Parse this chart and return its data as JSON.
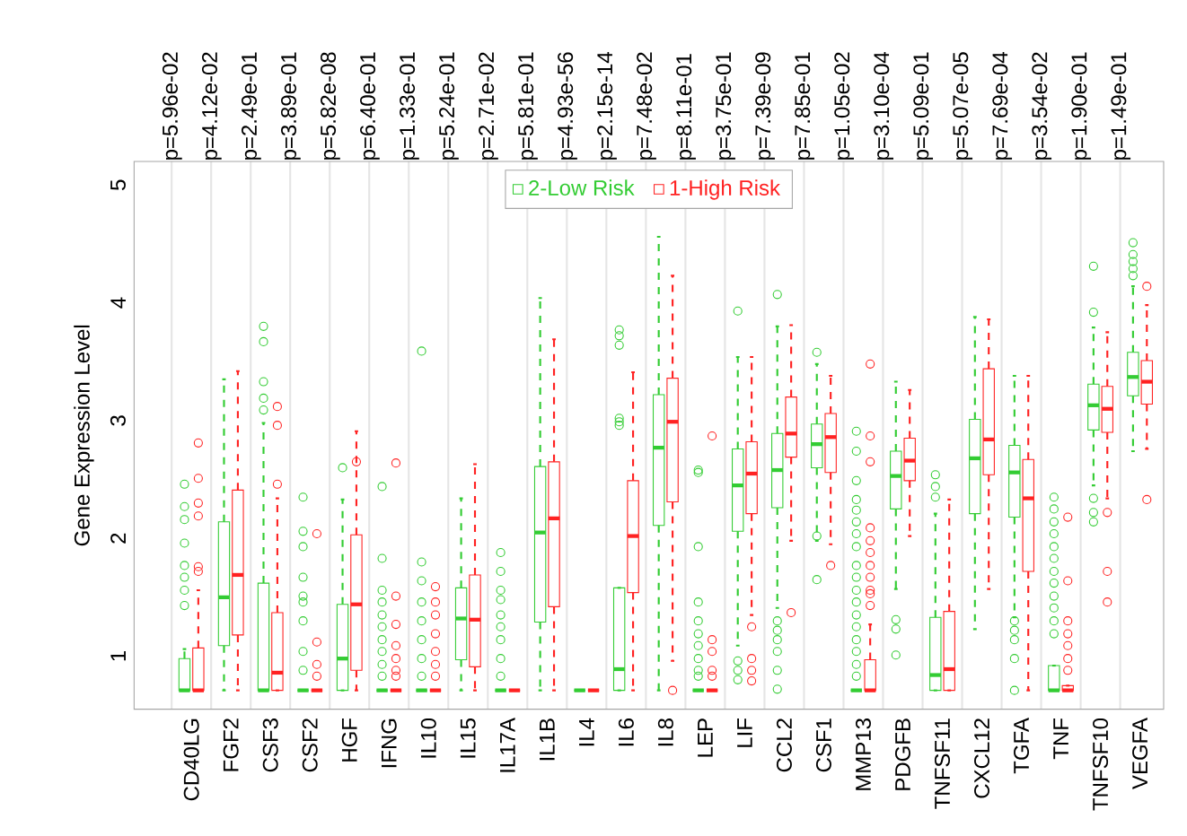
{
  "chart_data": {
    "type": "box",
    "ylabel": "Gene Expression Level",
    "categories": [
      "CD40LG",
      "FGF2",
      "CSF3",
      "CSF2",
      "HGF",
      "IFNG",
      "IL10",
      "IL15",
      "IL17A",
      "IL1B",
      "IL4",
      "IL6",
      "IL8",
      "LEP",
      "LIF",
      "CCL2",
      "CSF1",
      "MMP13",
      "PDGFB",
      "TNFSF11",
      "CXCL12",
      "TGFA",
      "TNF",
      "TNFSF10",
      "VEGFA"
    ],
    "ylim": [
      0.55,
      5.2
    ],
    "yticks": [
      1,
      2,
      3,
      4,
      5
    ],
    "grid": "x",
    "legend": "top",
    "marker": "circle",
    "annotations": [
      "p=5.96e-02",
      "p=4.12e-02",
      "p=2.49e-01",
      "p=3.89e-01",
      "p=5.82e-08",
      "p=6.40e-01",
      "p=1.33e-01",
      "p=5.24e-01",
      "p=2.71e-02",
      "p=5.81e-01",
      "p=4.93e-56",
      "p=2.15e-14",
      "p=7.48e-02",
      "p=8.11e-01",
      "p=3.75e-01",
      "p=7.39e-09",
      "p=7.85e-01",
      "p=1.05e-02",
      "p=3.10e-04",
      "p=5.09e-01",
      "p=5.07e-05",
      "p=7.69e-04",
      "p=3.54e-02",
      "p=1.90e-01",
      "p=1.49e-01"
    ],
    "series": [
      {
        "name": "2-Low Risk",
        "color": "#33cc33",
        "boxes": [
          {
            "low": 0.71,
            "q1": 0.71,
            "median": 0.71,
            "q3": 0.98,
            "high": 1.06,
            "outliers": [
              1.43,
              1.56,
              1.67,
              1.77,
              1.96,
              2.16,
              2.27,
              2.46
            ]
          },
          {
            "low": 0.71,
            "q1": 1.09,
            "median": 1.5,
            "q3": 2.14,
            "high": 3.35
          },
          {
            "low": 0.71,
            "q1": 0.71,
            "median": 0.71,
            "q3": 1.62,
            "high": 2.98,
            "outliers": [
              3.09,
              3.19,
              3.33,
              3.67,
              3.8
            ]
          },
          {
            "low": 0.71,
            "q1": 0.71,
            "median": 0.71,
            "q3": 0.71,
            "high": 0.71,
            "outliers": [
              0.88,
              1.04,
              1.3,
              1.46,
              1.51,
              1.67,
              1.93,
              2.06,
              2.35
            ]
          },
          {
            "low": 0.71,
            "q1": 0.71,
            "median": 0.98,
            "q3": 1.44,
            "high": 2.33,
            "outliers": [
              2.6
            ]
          },
          {
            "low": 0.71,
            "q1": 0.71,
            "median": 0.71,
            "q3": 0.71,
            "high": 0.71,
            "outliers": [
              0.83,
              0.93,
              1.04,
              1.14,
              1.25,
              1.35,
              1.46,
              1.56,
              1.83,
              2.44
            ]
          },
          {
            "low": 0.71,
            "q1": 0.71,
            "median": 0.71,
            "q3": 0.71,
            "high": 0.71,
            "outliers": [
              0.83,
              0.98,
              1.14,
              1.3,
              1.46,
              1.64,
              1.8,
              3.59
            ]
          },
          {
            "low": 0.71,
            "q1": 0.97,
            "median": 1.32,
            "q3": 1.58,
            "high": 2.34
          },
          {
            "low": 0.71,
            "q1": 0.71,
            "median": 0.71,
            "q3": 0.71,
            "high": 0.71,
            "outliers": [
              0.83,
              0.98,
              1.14,
              1.25,
              1.35,
              1.48,
              1.56,
              1.72,
              1.88
            ]
          },
          {
            "low": 0.71,
            "q1": 1.29,
            "median": 2.05,
            "q3": 2.61,
            "high": 4.04
          },
          {
            "low": 0.71,
            "q1": 0.71,
            "median": 0.71,
            "q3": 0.71,
            "high": 0.71
          },
          {
            "low": 0.71,
            "q1": 0.71,
            "median": 0.89,
            "q3": 1.58,
            "high": 1.58,
            "outliers": [
              2.96,
              2.99,
              3.02,
              3.64,
              3.72,
              3.77
            ]
          },
          {
            "low": 0.71,
            "q1": 2.11,
            "median": 2.77,
            "q3": 3.22,
            "high": 4.56
          },
          {
            "low": 0.71,
            "q1": 0.71,
            "median": 0.71,
            "q3": 0.71,
            "high": 0.71,
            "outliers": [
              0.83,
              0.88,
              0.98,
              1.09,
              1.19,
              1.3,
              1.46,
              1.93,
              2.56,
              2.58
            ]
          },
          {
            "low": 1.09,
            "q1": 2.06,
            "median": 2.45,
            "q3": 2.76,
            "high": 3.54,
            "outliers": [
              0.8,
              0.88,
              0.96,
              3.93
            ]
          },
          {
            "low": 1.41,
            "q1": 2.26,
            "median": 2.58,
            "q3": 2.89,
            "high": 3.8,
            "outliers": [
              0.72,
              0.88,
              1.04,
              1.14,
              1.22,
              1.3,
              4.07
            ]
          },
          {
            "low": 1.98,
            "q1": 2.6,
            "median": 2.8,
            "q3": 2.97,
            "high": 3.48,
            "outliers": [
              1.65,
              2.02,
              3.58
            ]
          },
          {
            "low": 0.71,
            "q1": 0.71,
            "median": 0.71,
            "q3": 0.71,
            "high": 0.71,
            "outliers": [
              0.83,
              0.93,
              1.04,
              1.14,
              1.25,
              1.35,
              1.46,
              1.56,
              1.67,
              1.77,
              1.93,
              2.04,
              2.14,
              2.24,
              2.33,
              2.49,
              2.74,
              2.91
            ]
          },
          {
            "low": 1.57,
            "q1": 2.25,
            "median": 2.53,
            "q3": 2.74,
            "high": 3.33,
            "outliers": [
              1.01,
              1.23,
              1.31
            ]
          },
          {
            "low": 0.71,
            "q1": 0.71,
            "median": 0.84,
            "q3": 1.33,
            "high": 2.21,
            "outliers": [
              2.35,
              2.44,
              2.54
            ]
          },
          {
            "low": 1.23,
            "q1": 2.21,
            "median": 2.68,
            "q3": 3.01,
            "high": 3.88
          },
          {
            "low": 1.33,
            "q1": 2.18,
            "median": 2.56,
            "q3": 2.79,
            "high": 3.38,
            "outliers": [
              0.71,
              0.98,
              1.14,
              1.22,
              1.3
            ]
          },
          {
            "low": 0.71,
            "q1": 0.71,
            "median": 0.71,
            "q3": 0.92,
            "high": 0.92,
            "outliers": [
              1.19,
              1.3,
              1.41,
              1.51,
              1.62,
              1.72,
              1.83,
              1.93,
              2.04,
              2.14,
              2.25,
              2.35
            ]
          },
          {
            "low": 2.45,
            "q1": 2.92,
            "median": 3.13,
            "q3": 3.31,
            "high": 3.79,
            "outliers": [
              2.14,
              2.22,
              2.34,
              3.92,
              4.31
            ]
          },
          {
            "low": 2.74,
            "q1": 3.21,
            "median": 3.37,
            "q3": 3.58,
            "high": 4.14,
            "outliers": [
              4.23,
              4.29,
              4.35,
              4.41,
              4.51
            ]
          }
        ]
      },
      {
        "name": "1-High Risk",
        "color": "#ff2222",
        "boxes": [
          {
            "low": 0.71,
            "q1": 0.71,
            "median": 0.71,
            "q3": 1.07,
            "high": 1.56,
            "outliers": [
              1.72,
              1.76,
              2.19,
              2.3,
              2.51,
              2.81
            ]
          },
          {
            "low": 0.71,
            "q1": 1.18,
            "median": 1.69,
            "q3": 2.41,
            "high": 3.42
          },
          {
            "low": 0.71,
            "q1": 0.71,
            "median": 0.86,
            "q3": 1.37,
            "high": 2.34,
            "outliers": [
              2.46,
              2.96,
              3.12
            ]
          },
          {
            "low": 0.71,
            "q1": 0.71,
            "median": 0.71,
            "q3": 0.71,
            "high": 0.71,
            "outliers": [
              0.83,
              0.93,
              1.12,
              2.04
            ]
          },
          {
            "low": 0.71,
            "q1": 0.88,
            "median": 1.44,
            "q3": 2.03,
            "high": 2.91,
            "outliers": [
              2.65
            ]
          },
          {
            "low": 0.71,
            "q1": 0.71,
            "median": 0.71,
            "q3": 0.71,
            "high": 0.71,
            "outliers": [
              0.83,
              0.88,
              0.98,
              1.09,
              1.27,
              1.51,
              2.64
            ]
          },
          {
            "low": 0.71,
            "q1": 0.71,
            "median": 0.71,
            "q3": 0.71,
            "high": 0.71,
            "outliers": [
              0.83,
              0.93,
              1.04,
              1.19,
              1.35,
              1.46,
              1.59
            ]
          },
          {
            "low": 0.71,
            "q1": 0.91,
            "median": 1.31,
            "q3": 1.69,
            "high": 2.63
          },
          {
            "low": 0.71,
            "q1": 0.71,
            "median": 0.71,
            "q3": 0.71,
            "high": 0.71
          },
          {
            "low": 0.71,
            "q1": 1.42,
            "median": 2.17,
            "q3": 2.65,
            "high": 3.69
          },
          {
            "low": 0.71,
            "q1": 0.71,
            "median": 0.71,
            "q3": 0.71,
            "high": 0.71
          },
          {
            "low": 0.71,
            "q1": 1.54,
            "median": 2.02,
            "q3": 2.49,
            "high": 3.41
          },
          {
            "low": 0.96,
            "q1": 2.31,
            "median": 2.99,
            "q3": 3.36,
            "high": 4.23,
            "outliers": [
              0.71
            ]
          },
          {
            "low": 0.71,
            "q1": 0.71,
            "median": 0.71,
            "q3": 0.71,
            "high": 0.71,
            "outliers": [
              0.83,
              0.88,
              1.04,
              1.14,
              2.87
            ]
          },
          {
            "low": 1.35,
            "q1": 2.21,
            "median": 2.55,
            "q3": 2.82,
            "high": 3.54,
            "outliers": [
              0.79,
              0.88,
              0.98,
              1.25
            ]
          },
          {
            "low": 1.98,
            "q1": 2.69,
            "median": 2.89,
            "q3": 3.2,
            "high": 3.81,
            "outliers": [
              1.37
            ]
          },
          {
            "low": 1.95,
            "q1": 2.56,
            "median": 2.86,
            "q3": 3.06,
            "high": 3.38,
            "outliers": [
              1.77
            ]
          },
          {
            "low": 0.71,
            "q1": 0.71,
            "median": 0.71,
            "q3": 0.97,
            "high": 1.27,
            "outliers": [
              1.43,
              1.53,
              1.56,
              1.67,
              1.77,
              1.88,
              1.98,
              2.09,
              2.65,
              2.87,
              3.48
            ]
          },
          {
            "low": 2.02,
            "q1": 2.49,
            "median": 2.66,
            "q3": 2.85,
            "high": 3.26
          },
          {
            "low": 0.71,
            "q1": 0.71,
            "median": 0.89,
            "q3": 1.38,
            "high": 2.33
          },
          {
            "low": 1.57,
            "q1": 2.54,
            "median": 2.84,
            "q3": 3.44,
            "high": 3.86
          },
          {
            "low": 0.71,
            "q1": 1.72,
            "median": 2.34,
            "q3": 2.67,
            "high": 3.38
          },
          {
            "low": 0.71,
            "q1": 0.71,
            "median": 0.71,
            "q3": 0.75,
            "high": 0.75,
            "outliers": [
              0.88,
              0.98,
              1.09,
              1.19,
              1.3,
              1.64,
              2.18
            ]
          },
          {
            "low": 2.34,
            "q1": 2.9,
            "median": 3.1,
            "q3": 3.29,
            "high": 3.75,
            "outliers": [
              1.46,
              1.72,
              2.22
            ]
          },
          {
            "low": 2.76,
            "q1": 3.14,
            "median": 3.33,
            "q3": 3.51,
            "high": 3.98,
            "outliers": [
              2.33,
              4.14
            ]
          }
        ]
      }
    ]
  }
}
